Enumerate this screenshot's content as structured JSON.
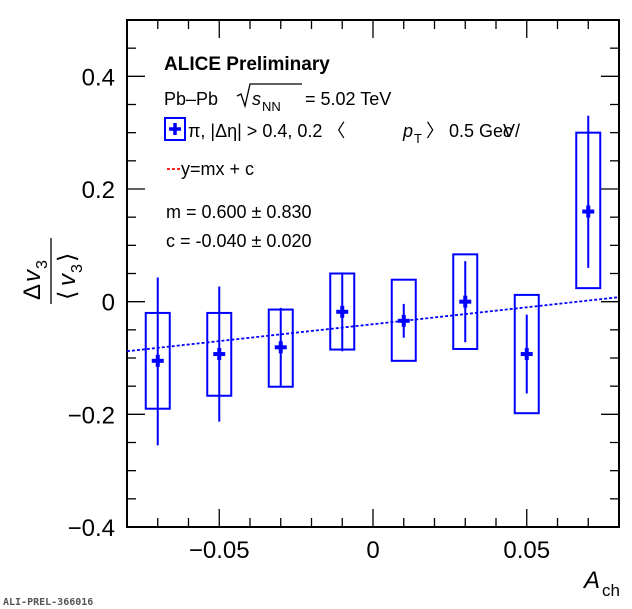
{
  "chart_data": {
    "type": "scatter",
    "title": "ALICE Preliminary",
    "collision_label": "Pb–Pb",
    "energy_symbol": "s",
    "energy_subscript": "NN",
    "energy_value": "= 5.02 TeV",
    "legend": {
      "species": "π, |Δη| > 0.4, 0.2 〈",
      "pt_symbol": "p",
      "pt_subscript": "T",
      "pt_range": "〉 0.5 GeV/",
      "pt_unit": "c",
      "fit_label": "y=mx + c"
    },
    "fit": {
      "m_text": "m = 0.600 ± 0.830",
      "c_text": "c = -0.040 ± 0.020",
      "m": 0.6,
      "c": -0.04,
      "color": "#0000ff",
      "legend_color": "#ff0000"
    },
    "xlabel": {
      "main": "A",
      "sub": "ch"
    },
    "ylabel": {
      "num_delta": "Δ",
      "num_v": "v",
      "num_sub": "3",
      "den_v": "v",
      "den_sub": "3"
    },
    "xlim": [
      -0.08,
      0.08
    ],
    "ylim": [
      -0.4,
      0.5
    ],
    "xticks": [
      -0.05,
      0,
      0.05
    ],
    "xtick_labels": [
      "−0.05",
      "0",
      "0.05"
    ],
    "yticks": [
      -0.4,
      -0.2,
      0,
      0.2,
      0.4
    ],
    "ytick_labels": [
      "−0.4",
      "−0.2",
      "0",
      "0.2",
      "0.4"
    ],
    "series": [
      {
        "name": "pi",
        "color": "#0000ff",
        "points": [
          {
            "x": -0.07,
            "y": -0.105,
            "stat_lo": -0.255,
            "stat_hi": 0.043,
            "sys_lo": -0.19,
            "sys_hi": -0.02
          },
          {
            "x": -0.05,
            "y": -0.093,
            "stat_lo": -0.213,
            "stat_hi": 0.027,
            "sys_lo": -0.167,
            "sys_hi": -0.02
          },
          {
            "x": -0.03,
            "y": -0.081,
            "stat_lo": -0.151,
            "stat_hi": -0.011,
            "sys_lo": -0.151,
            "sys_hi": -0.014
          },
          {
            "x": -0.01,
            "y": -0.018,
            "stat_lo": -0.088,
            "stat_hi": 0.052,
            "sys_lo": -0.085,
            "sys_hi": 0.05
          },
          {
            "x": 0.01,
            "y": -0.034,
            "stat_lo": -0.064,
            "stat_hi": -0.004,
            "sys_lo": -0.105,
            "sys_hi": 0.039
          },
          {
            "x": 0.03,
            "y": 0.0,
            "stat_lo": -0.072,
            "stat_hi": 0.072,
            "sys_lo": -0.084,
            "sys_hi": 0.084
          },
          {
            "x": 0.05,
            "y": -0.093,
            "stat_lo": -0.163,
            "stat_hi": -0.023,
            "sys_lo": -0.198,
            "sys_hi": 0.012
          },
          {
            "x": 0.07,
            "y": 0.16,
            "stat_lo": 0.06,
            "stat_hi": 0.33,
            "sys_lo": 0.024,
            "sys_hi": 0.3
          }
        ]
      }
    ]
  },
  "footer": {
    "watermark": "ALI-PREL-366016"
  }
}
